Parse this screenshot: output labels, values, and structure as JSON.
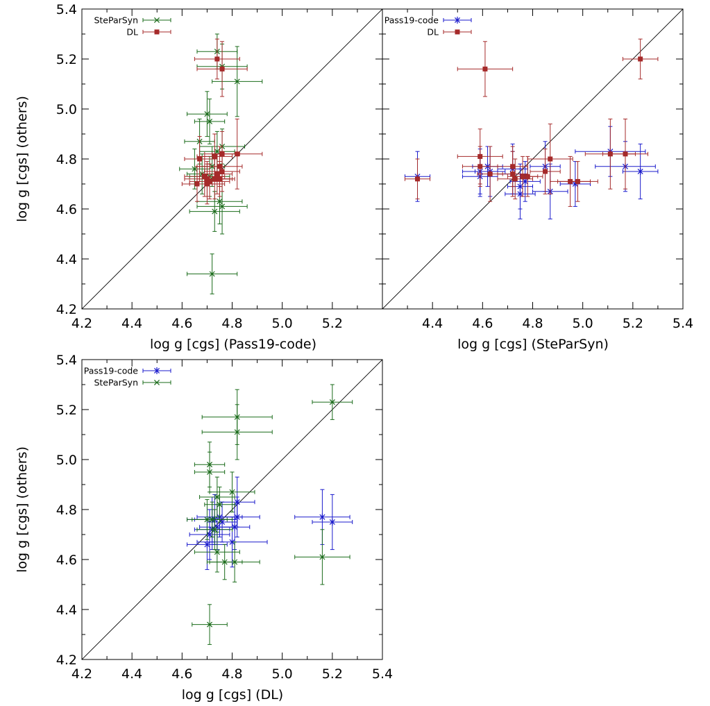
{
  "colors": {
    "pass19": "#1a1acc",
    "steparsyn": "#1a6b1a",
    "dl": "#a52a2a",
    "axis": "#000000"
  },
  "legend_labels": {
    "pass19": "Pass19-code",
    "steparsyn": "SteParSyn",
    "dl": "DL"
  },
  "chart_data": [
    {
      "type": "scatter",
      "xlabel": "log g [cgs] (Pass19-code)",
      "ylabel": "log g [cgs] (others)",
      "xlim": [
        4.2,
        5.4
      ],
      "ylim": [
        4.2,
        5.4
      ],
      "xticks": [
        "4.2",
        "4.4",
        "4.6",
        "4.8",
        "5.0",
        "5.2"
      ],
      "yticks": [
        "4.2",
        "4.4",
        "4.6",
        "4.8",
        "5.0",
        "5.2",
        "5.4"
      ],
      "identity_line": true,
      "legend": "top-left",
      "series": [
        {
          "key": "steparsyn",
          "name": "SteParSyn",
          "marker": "x",
          "points": [
            [
              4.74,
              5.23,
              0.08,
              0.07
            ],
            [
              4.76,
              5.17,
              0.1,
              0.09
            ],
            [
              4.82,
              5.11,
              0.1,
              0.14
            ],
            [
              4.7,
              4.98,
              0.08,
              0.09
            ],
            [
              4.71,
              4.95,
              0.06,
              0.09
            ],
            [
              4.67,
              4.87,
              0.06,
              0.09
            ],
            [
              4.76,
              4.85,
              0.09,
              0.07
            ],
            [
              4.74,
              4.83,
              0.07,
              0.08
            ],
            [
              4.65,
              4.76,
              0.06,
              0.08
            ],
            [
              4.72,
              4.77,
              0.05,
              0.08
            ],
            [
              4.68,
              4.74,
              0.06,
              0.08
            ],
            [
              4.71,
              4.73,
              0.08,
              0.08
            ],
            [
              4.75,
              4.63,
              0.09,
              0.09
            ],
            [
              4.76,
              4.61,
              0.1,
              0.11
            ],
            [
              4.73,
              4.59,
              0.1,
              0.08
            ],
            [
              4.72,
              4.34,
              0.1,
              0.08
            ]
          ]
        },
        {
          "key": "dl",
          "name": "DL",
          "marker": "square",
          "points": [
            [
              4.74,
              5.2,
              0.09,
              0.08
            ],
            [
              4.76,
              5.16,
              0.1,
              0.11
            ],
            [
              4.82,
              4.82,
              0.1,
              0.14
            ],
            [
              4.76,
              4.82,
              0.07,
              0.09
            ],
            [
              4.73,
              4.81,
              0.07,
              0.09
            ],
            [
              4.67,
              4.8,
              0.06,
              0.09
            ],
            [
              4.75,
              4.77,
              0.09,
              0.08
            ],
            [
              4.76,
              4.75,
              0.07,
              0.08
            ],
            [
              4.74,
              4.74,
              0.06,
              0.08
            ],
            [
              4.69,
              4.73,
              0.08,
              0.08
            ],
            [
              4.7,
              4.72,
              0.09,
              0.07
            ],
            [
              4.73,
              4.72,
              0.07,
              0.08
            ],
            [
              4.75,
              4.72,
              0.06,
              0.07
            ],
            [
              4.71,
              4.71,
              0.08,
              0.07
            ],
            [
              4.7,
              4.7,
              0.07,
              0.08
            ],
            [
              4.66,
              4.7,
              0.06,
              0.07
            ]
          ]
        }
      ]
    },
    {
      "type": "scatter",
      "xlabel": "log g [cgs] (SteParSyn)",
      "ylabel": "",
      "xlim": [
        4.2,
        5.4
      ],
      "ylim": [
        4.2,
        5.4
      ],
      "xticks": [
        "4.4",
        "4.6",
        "4.8",
        "5.0",
        "5.2",
        "5.4"
      ],
      "yticks": [],
      "identity_line": true,
      "legend": "top-left",
      "series": [
        {
          "key": "pass19",
          "name": "Pass19-code",
          "marker": "star",
          "points": [
            [
              4.34,
              4.73,
              0.05,
              0.1
            ],
            [
              4.59,
              4.75,
              0.07,
              0.09
            ],
            [
              4.59,
              4.73,
              0.07,
              0.08
            ],
            [
              4.62,
              4.77,
              0.06,
              0.08
            ],
            [
              4.63,
              4.75,
              0.06,
              0.1
            ],
            [
              4.72,
              4.76,
              0.06,
              0.1
            ],
            [
              4.72,
              4.74,
              0.06,
              0.09
            ],
            [
              4.75,
              4.69,
              0.05,
              0.09
            ],
            [
              4.75,
              4.66,
              0.06,
              0.1
            ],
            [
              4.77,
              4.71,
              0.06,
              0.08
            ],
            [
              4.85,
              4.77,
              0.06,
              0.1
            ],
            [
              4.87,
              4.67,
              0.07,
              0.11
            ],
            [
              4.97,
              4.7,
              0.06,
              0.09
            ],
            [
              5.11,
              4.83,
              0.14,
              0.1
            ],
            [
              5.17,
              4.77,
              0.12,
              0.1
            ],
            [
              5.23,
              4.75,
              0.07,
              0.11
            ]
          ]
        },
        {
          "key": "dl",
          "name": "DL",
          "marker": "square",
          "points": [
            [
              4.34,
              4.72,
              0.05,
              0.08
            ],
            [
              4.61,
              5.16,
              0.11,
              0.11
            ],
            [
              4.59,
              4.81,
              0.09,
              0.11
            ],
            [
              4.59,
              4.77,
              0.07,
              0.08
            ],
            [
              4.63,
              4.74,
              0.05,
              0.11
            ],
            [
              4.72,
              4.77,
              0.06,
              0.08
            ],
            [
              4.72,
              4.74,
              0.06,
              0.09
            ],
            [
              4.73,
              4.72,
              0.07,
              0.08
            ],
            [
              4.76,
              4.73,
              0.06,
              0.08
            ],
            [
              4.78,
              4.73,
              0.06,
              0.08
            ],
            [
              4.85,
              4.75,
              0.06,
              0.09
            ],
            [
              4.87,
              4.8,
              0.09,
              0.14
            ],
            [
              4.95,
              4.71,
              0.08,
              0.1
            ],
            [
              4.98,
              4.71,
              0.08,
              0.08
            ],
            [
              5.11,
              4.82,
              0.1,
              0.14
            ],
            [
              5.17,
              4.82,
              0.09,
              0.14
            ],
            [
              5.23,
              5.2,
              0.07,
              0.08
            ]
          ]
        }
      ]
    },
    {
      "type": "scatter",
      "xlabel": "log g [cgs] (DL)",
      "ylabel": "log g [cgs] (others)",
      "xlim": [
        4.2,
        5.4
      ],
      "ylim": [
        4.2,
        5.4
      ],
      "xticks": [
        "4.2",
        "4.4",
        "4.6",
        "4.8",
        "5.0",
        "5.2",
        "5.4"
      ],
      "yticks": [
        "4.2",
        "4.4",
        "4.6",
        "4.8",
        "5.0",
        "5.2",
        "5.4"
      ],
      "identity_line": true,
      "legend": "top-left",
      "series": [
        {
          "key": "pass19",
          "name": "Pass19-code",
          "marker": "star",
          "points": [
            [
              4.82,
              4.83,
              0.07,
              0.1
            ],
            [
              4.82,
              4.77,
              0.09,
              0.08
            ],
            [
              4.81,
              4.73,
              0.06,
              0.09
            ],
            [
              4.8,
              4.67,
              0.14,
              0.1
            ],
            [
              4.75,
              4.77,
              0.09,
              0.08
            ],
            [
              4.73,
              4.76,
              0.08,
              0.1
            ],
            [
              4.74,
              4.73,
              0.07,
              0.09
            ],
            [
              4.76,
              4.75,
              0.06,
              0.08
            ],
            [
              4.72,
              4.76,
              0.1,
              0.09
            ],
            [
              4.71,
              4.7,
              0.08,
              0.1
            ],
            [
              4.7,
              4.66,
              0.08,
              0.1
            ],
            [
              4.72,
              4.72,
              0.07,
              0.08
            ],
            [
              5.16,
              4.77,
              0.11,
              0.11
            ],
            [
              5.2,
              4.75,
              0.08,
              0.11
            ]
          ]
        },
        {
          "key": "steparsyn",
          "name": "SteParSyn",
          "marker": "x",
          "points": [
            [
              5.2,
              5.23,
              0.08,
              0.07
            ],
            [
              4.82,
              5.17,
              0.14,
              0.11
            ],
            [
              4.82,
              5.11,
              0.14,
              0.11
            ],
            [
              4.71,
              4.98,
              0.06,
              0.09
            ],
            [
              4.71,
              4.95,
              0.06,
              0.08
            ],
            [
              4.8,
              4.87,
              0.09,
              0.08
            ],
            [
              4.74,
              4.85,
              0.07,
              0.08
            ],
            [
              4.75,
              4.82,
              0.06,
              0.07
            ],
            [
              4.7,
              4.76,
              0.08,
              0.08
            ],
            [
              4.72,
              4.76,
              0.08,
              0.07
            ],
            [
              4.73,
              4.72,
              0.07,
              0.08
            ],
            [
              4.74,
              4.63,
              0.09,
              0.08
            ],
            [
              4.77,
              4.59,
              0.07,
              0.07
            ],
            [
              4.81,
              4.59,
              0.1,
              0.08
            ],
            [
              5.16,
              4.61,
              0.11,
              0.11
            ],
            [
              4.71,
              4.34,
              0.07,
              0.08
            ]
          ]
        }
      ]
    }
  ]
}
